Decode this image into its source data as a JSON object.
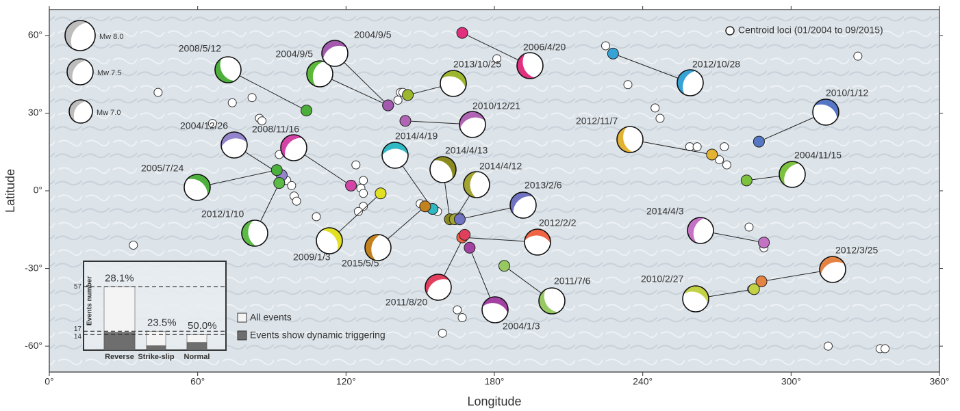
{
  "chart_data": [
    {
      "type": "map",
      "xlabel": "Longitude",
      "ylabel": "Latitude",
      "xlim": [
        0,
        360
      ],
      "ylim": [
        -70,
        70
      ],
      "xticks": [
        {
          "value": 0,
          "label": "0°"
        },
        {
          "value": 60,
          "label": "60°"
        },
        {
          "value": 120,
          "label": "120°"
        },
        {
          "value": 180,
          "label": "180°"
        },
        {
          "value": 240,
          "label": "240°"
        },
        {
          "value": 300,
          "label": "300°"
        },
        {
          "value": 360,
          "label": "360°"
        }
      ],
      "yticks": [
        {
          "value": -60,
          "label": "-60°"
        },
        {
          "value": -30,
          "label": "-30°"
        },
        {
          "value": 0,
          "label": "0°"
        },
        {
          "value": 30,
          "label": "30°"
        },
        {
          "value": 60,
          "label": "60°"
        }
      ],
      "centroid_legend": "Centroid loci (01/2004 to 09/2015)",
      "size_legend": [
        "Mw 8.0",
        "Mw 7.5",
        "Mw 7.0"
      ],
      "events": [
        {
          "label": "2008/5/12",
          "lon": 104,
          "lat": 31,
          "color": "#4caf3a"
        },
        {
          "label": "2004/9/5",
          "lon": 137,
          "lat": 33,
          "color": "#5cb83a"
        },
        {
          "label": "2004/9/5",
          "lon": 137,
          "lat": 33,
          "color": "#a35aae"
        },
        {
          "label": "2013/10/25",
          "lon": 145,
          "lat": 37,
          "color": "#9cb62e"
        },
        {
          "label": "2006/4/20",
          "lon": 167,
          "lat": 61,
          "color": "#e0307e"
        },
        {
          "label": "2012/10/28",
          "lon": 228,
          "lat": 53,
          "color": "#36a2d6"
        },
        {
          "label": "2010/12/21",
          "lon": 144,
          "lat": 27,
          "color": "#b064b4"
        },
        {
          "label": "2010/1/12",
          "lon": 287,
          "lat": 19,
          "color": "#5676c6"
        },
        {
          "label": "2012/11/7",
          "lon": 268,
          "lat": 14,
          "color": "#e2b232"
        },
        {
          "label": "2004/11/15",
          "lon": 282,
          "lat": 4,
          "color": "#7cc23e"
        },
        {
          "label": "2004/12/26",
          "lon": 94,
          "lat": 6,
          "color": "#9384cc"
        },
        {
          "label": "2005/7/24",
          "lon": 92,
          "lat": 8,
          "color": "#4cb03c"
        },
        {
          "label": "2012/1/10",
          "lon": 93,
          "lat": 3,
          "color": "#5cba46"
        },
        {
          "label": "2008/11/16",
          "lon": 122,
          "lat": 2,
          "color": "#d444a6"
        },
        {
          "label": "2014/4/19",
          "lon": 155,
          "lat": -7,
          "color": "#30b9c2"
        },
        {
          "label": "2014/4/13",
          "lon": 162,
          "lat": -11,
          "color": "#8a8a1e"
        },
        {
          "label": "2014/4/12",
          "lon": 164,
          "lat": -11,
          "color": "#a4a432"
        },
        {
          "label": "2013/2/6",
          "lon": 166,
          "lat": -11,
          "color": "#7072c2"
        },
        {
          "label": "2012/2/2",
          "lon": 167,
          "lat": -18,
          "color": "#f06444"
        },
        {
          "label": "2009/1/3",
          "lon": 134,
          "lat": -1,
          "color": "#e2e024"
        },
        {
          "label": "2015/5/5",
          "lon": 152,
          "lat": -6,
          "color": "#c4821e"
        },
        {
          "label": "2011/8/20",
          "lon": 168,
          "lat": -17,
          "color": "#e0405e"
        },
        {
          "label": "2004/1/3",
          "lon": 170,
          "lat": -22,
          "color": "#a442a4"
        },
        {
          "label": "2011/7/6",
          "lon": 184,
          "lat": -29,
          "color": "#98c862"
        },
        {
          "label": "2014/4/3",
          "lon": 289,
          "lat": -20,
          "color": "#c472c4"
        },
        {
          "label": "2012/3/25",
          "lon": 288,
          "lat": -35,
          "color": "#e48444"
        },
        {
          "label": "2010/2/27",
          "lon": 285,
          "lat": -38,
          "color": "#c2d244"
        }
      ],
      "other_centroids": {
        "lon": [
          34,
          44,
          66,
          74,
          82,
          85,
          86,
          93,
          96,
          98,
          99,
          100,
          108,
          124,
          127,
          126,
          127,
          127,
          125,
          142,
          143,
          141,
          150,
          157,
          166,
          181,
          225,
          234,
          245,
          247,
          259,
          262,
          273,
          271,
          274,
          283,
          289,
          284,
          315,
          336,
          338,
          327,
          165,
          167,
          159
        ],
        "lat": [
          -21,
          38,
          26,
          34,
          36,
          28,
          27,
          14,
          4,
          2,
          -2,
          -4,
          -10,
          10,
          4,
          1,
          -1,
          -6,
          -8,
          38,
          38,
          35,
          -5,
          -8,
          -10,
          51,
          56,
          41,
          32,
          28,
          17,
          17,
          17,
          12,
          10,
          -14,
          -22,
          -38,
          -60,
          -61,
          -61,
          52,
          -46,
          -49,
          -55
        ]
      }
    },
    {
      "type": "bar",
      "ylabel": "Events number",
      "categories": [
        "Reverse",
        "Strike-slip",
        "Normal"
      ],
      "ylim": [
        0,
        80
      ],
      "yticks": [
        14,
        17,
        57
      ],
      "series": [
        {
          "name": "All events",
          "color": "#f4f4f4",
          "values": [
            57,
            17,
            14
          ]
        },
        {
          "name": "Events show dynamic triggering",
          "color": "#6e6e6e",
          "values": [
            16,
            4,
            7
          ]
        }
      ],
      "percent_values": [
        28.1,
        23.5,
        50.0
      ],
      "value_labels": [
        "28.1%",
        "23.5%",
        "50.0%"
      ]
    }
  ]
}
